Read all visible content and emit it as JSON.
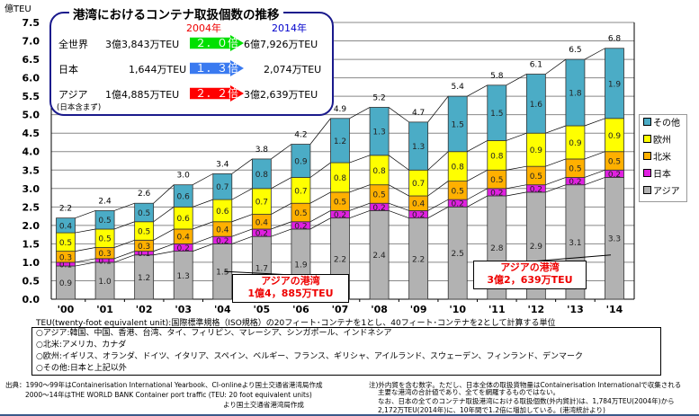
{
  "chart_data": {
    "type": "bar",
    "stacked": true,
    "ylabel": "億TEU",
    "ylim": [
      0,
      7.5
    ],
    "yticks": [
      "0.0",
      "0.5",
      "1.0",
      "1.5",
      "2.0",
      "2.5",
      "3.0",
      "3.5",
      "4.0",
      "4.5",
      "5.0",
      "5.5",
      "6.0",
      "6.5",
      "7.0",
      "7.5"
    ],
    "categories": [
      "'00",
      "'01",
      "'02",
      "'03",
      "'04",
      "'05",
      "'06",
      "'07",
      "'08",
      "'09",
      "'10",
      "'11",
      "'12",
      "'13",
      "'14"
    ],
    "series": [
      {
        "name": "アジア",
        "color": "#b2b2b2",
        "values": [
          0.9,
          1.0,
          1.2,
          1.3,
          1.5,
          1.7,
          1.9,
          2.2,
          2.4,
          2.2,
          2.5,
          2.8,
          2.9,
          3.1,
          3.3
        ]
      },
      {
        "name": "日本",
        "color": "#e020e0",
        "values": [
          0.1,
          0.1,
          0.1,
          0.2,
          0.2,
          0.2,
          0.2,
          0.2,
          0.2,
          0.2,
          0.2,
          0.2,
          0.2,
          0.2,
          0.2
        ]
      },
      {
        "name": "北米",
        "color": "#ffb000",
        "values": [
          0.3,
          0.3,
          0.3,
          0.4,
          0.4,
          0.4,
          0.5,
          0.5,
          0.5,
          0.4,
          0.5,
          0.5,
          0.5,
          0.5,
          0.5
        ]
      },
      {
        "name": "欧州",
        "color": "#ffff00",
        "values": [
          0.5,
          0.5,
          0.5,
          0.6,
          0.6,
          0.7,
          0.7,
          0.8,
          0.8,
          0.7,
          0.8,
          0.8,
          0.9,
          0.9,
          0.9
        ]
      },
      {
        "name": "その他",
        "color": "#4bacc6",
        "values": [
          0.4,
          0.5,
          0.5,
          0.6,
          0.7,
          0.8,
          0.9,
          1.2,
          1.3,
          1.3,
          1.5,
          1.5,
          1.6,
          1.8,
          1.9
        ]
      }
    ],
    "totals": [
      "2.2",
      "2.4",
      "2.6",
      "3.0",
      "3.4",
      "3.8",
      "4.2",
      "4.9",
      "5.2",
      "4.7",
      "5.4",
      "5.8",
      "6.1",
      "6.5",
      "6.8"
    ],
    "legend": [
      "その他",
      "欧州",
      "北米",
      "日本",
      "アジア"
    ],
    "legend_position": "right",
    "grid": true,
    "annotations": [
      {
        "line1": "アジアの港湾",
        "line2": "1億4，885万TEU"
      },
      {
        "line1": "アジアの港湾",
        "line2": "3億2，639万TEU"
      }
    ]
  },
  "summary": {
    "title": "港湾におけるコンテナ取扱個数の推移",
    "year_from": "2004年",
    "year_to": "2014年",
    "rows": [
      {
        "label": "全世界",
        "from": "3億3,843万TEU",
        "ratio": "２．０倍",
        "to": "6億7,926万TEU",
        "color": "#00e000"
      },
      {
        "label": "日本",
        "from": "1,644万TEU",
        "ratio": "１．３倍",
        "to": "2,074万TEU",
        "color": "#3a7af0"
      },
      {
        "label": "アジア",
        "from": "1億4,885万TEU",
        "ratio": "２．２倍",
        "to": "3億2,639万TEU",
        "color": "#ff0000"
      }
    ],
    "asia_note": "(日本含まず)"
  },
  "teu_note": "TEU(twenty-foot equivalent unit):国際標準規格（ISO規格）の20フィート･コンテナを1とし、40フィート･コンテナを2として計算する単位",
  "regions": [
    "○アジア:韓国、中国、香港、台湾、タイ、フィリピン、マレーシア、シンガポール、インドネシア",
    "○北米:アメリカ、カナダ",
    "○欧州:イギリス、オランダ、ドイツ、イタリア、スペイン、ベルギー、フランス、ギリシャ、アイルランド、スウェーデン、フィンランド、デンマーク",
    "○その他:日本と上記以外"
  ],
  "source": {
    "line1": "出典：1990～99年はContainerisation International Yearbook、CI-onlineより国土交通省港湾局作成",
    "line2": "2000～14年はTHE WORLD BANK Container port traffic (TEU: 20 foot equivalent units)",
    "line3": "より国土交通省港湾局作成"
  },
  "remark": {
    "line1": "注)外内貿を含む数字。ただし、日本全体の取扱貨物量はContainerisation Internationalで収集される",
    "line2": "主要な港湾の合計値であり、全てを網羅するものではない。",
    "line3": "なお、日本の全てのコンテナ取扱港湾における取扱個数(外内貿計)は、1,784万TEU(2004年)から",
    "line4": "2,172万TEU(2014年)に、10年間で1.2倍に増加している。(港湾統計より)"
  }
}
